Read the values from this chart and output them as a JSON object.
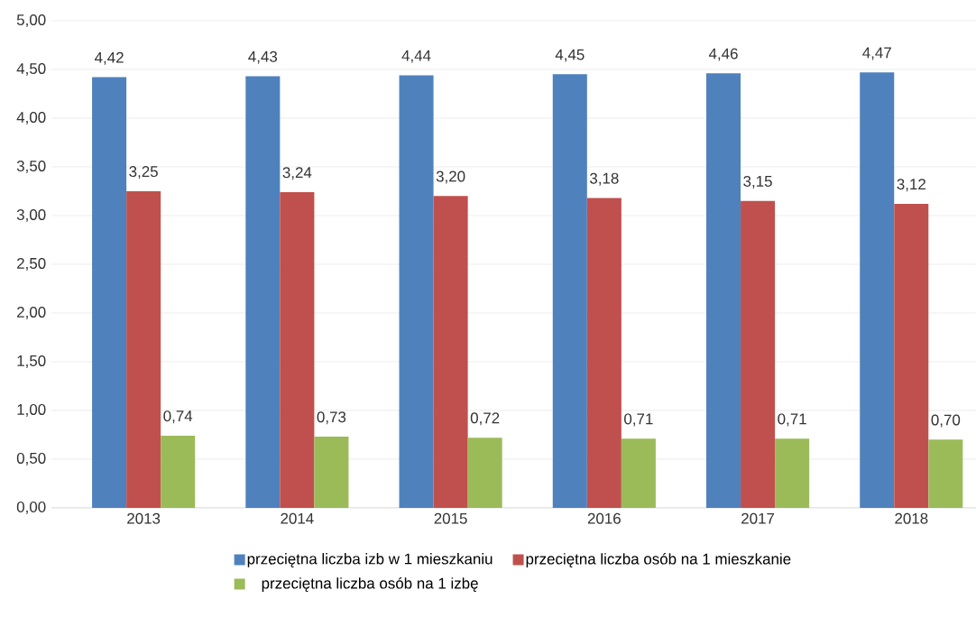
{
  "chart_data": {
    "type": "bar",
    "categories": [
      "2013",
      "2014",
      "2015",
      "2016",
      "2017",
      "2018"
    ],
    "series": [
      {
        "name": "przeciętna liczba izb w 1 mieszkaniu",
        "color": "#4f81bd",
        "values": [
          4.42,
          4.43,
          4.44,
          4.45,
          4.46,
          4.47
        ],
        "value_labels": [
          "4,42",
          "4,43",
          "4,44",
          "4,45",
          "4,46",
          "4,47"
        ]
      },
      {
        "name": "przeciętna liczba osób na 1 mieszkanie",
        "color": "#c0504d",
        "values": [
          3.25,
          3.24,
          3.2,
          3.18,
          3.15,
          3.12
        ],
        "value_labels": [
          "3,25",
          "3,24",
          "3,20",
          "3,18",
          "3,15",
          "3,12"
        ]
      },
      {
        "name": "przeciętna liczba osób na 1 izbę",
        "color": "#9bbb59",
        "values": [
          0.74,
          0.73,
          0.72,
          0.71,
          0.71,
          0.7
        ],
        "value_labels": [
          "0,74",
          "0,73",
          "0,72",
          "0,71",
          "0,71",
          "0,70"
        ]
      }
    ],
    "ylim": [
      0,
      5
    ],
    "yticks": [
      {
        "value": 0,
        "label": "0,00"
      },
      {
        "value": 0.5,
        "label": "0,50"
      },
      {
        "value": 1,
        "label": "1,00"
      },
      {
        "value": 1.5,
        "label": "1,50"
      },
      {
        "value": 2,
        "label": "2,00"
      },
      {
        "value": 2.5,
        "label": "2,50"
      },
      {
        "value": 3,
        "label": "3,00"
      },
      {
        "value": 3.5,
        "label": "3,50"
      },
      {
        "value": 4,
        "label": "4,00"
      },
      {
        "value": 4.5,
        "label": "4,50"
      },
      {
        "value": 5,
        "label": "5,00"
      }
    ],
    "grid": "y",
    "legend": "bottom"
  }
}
